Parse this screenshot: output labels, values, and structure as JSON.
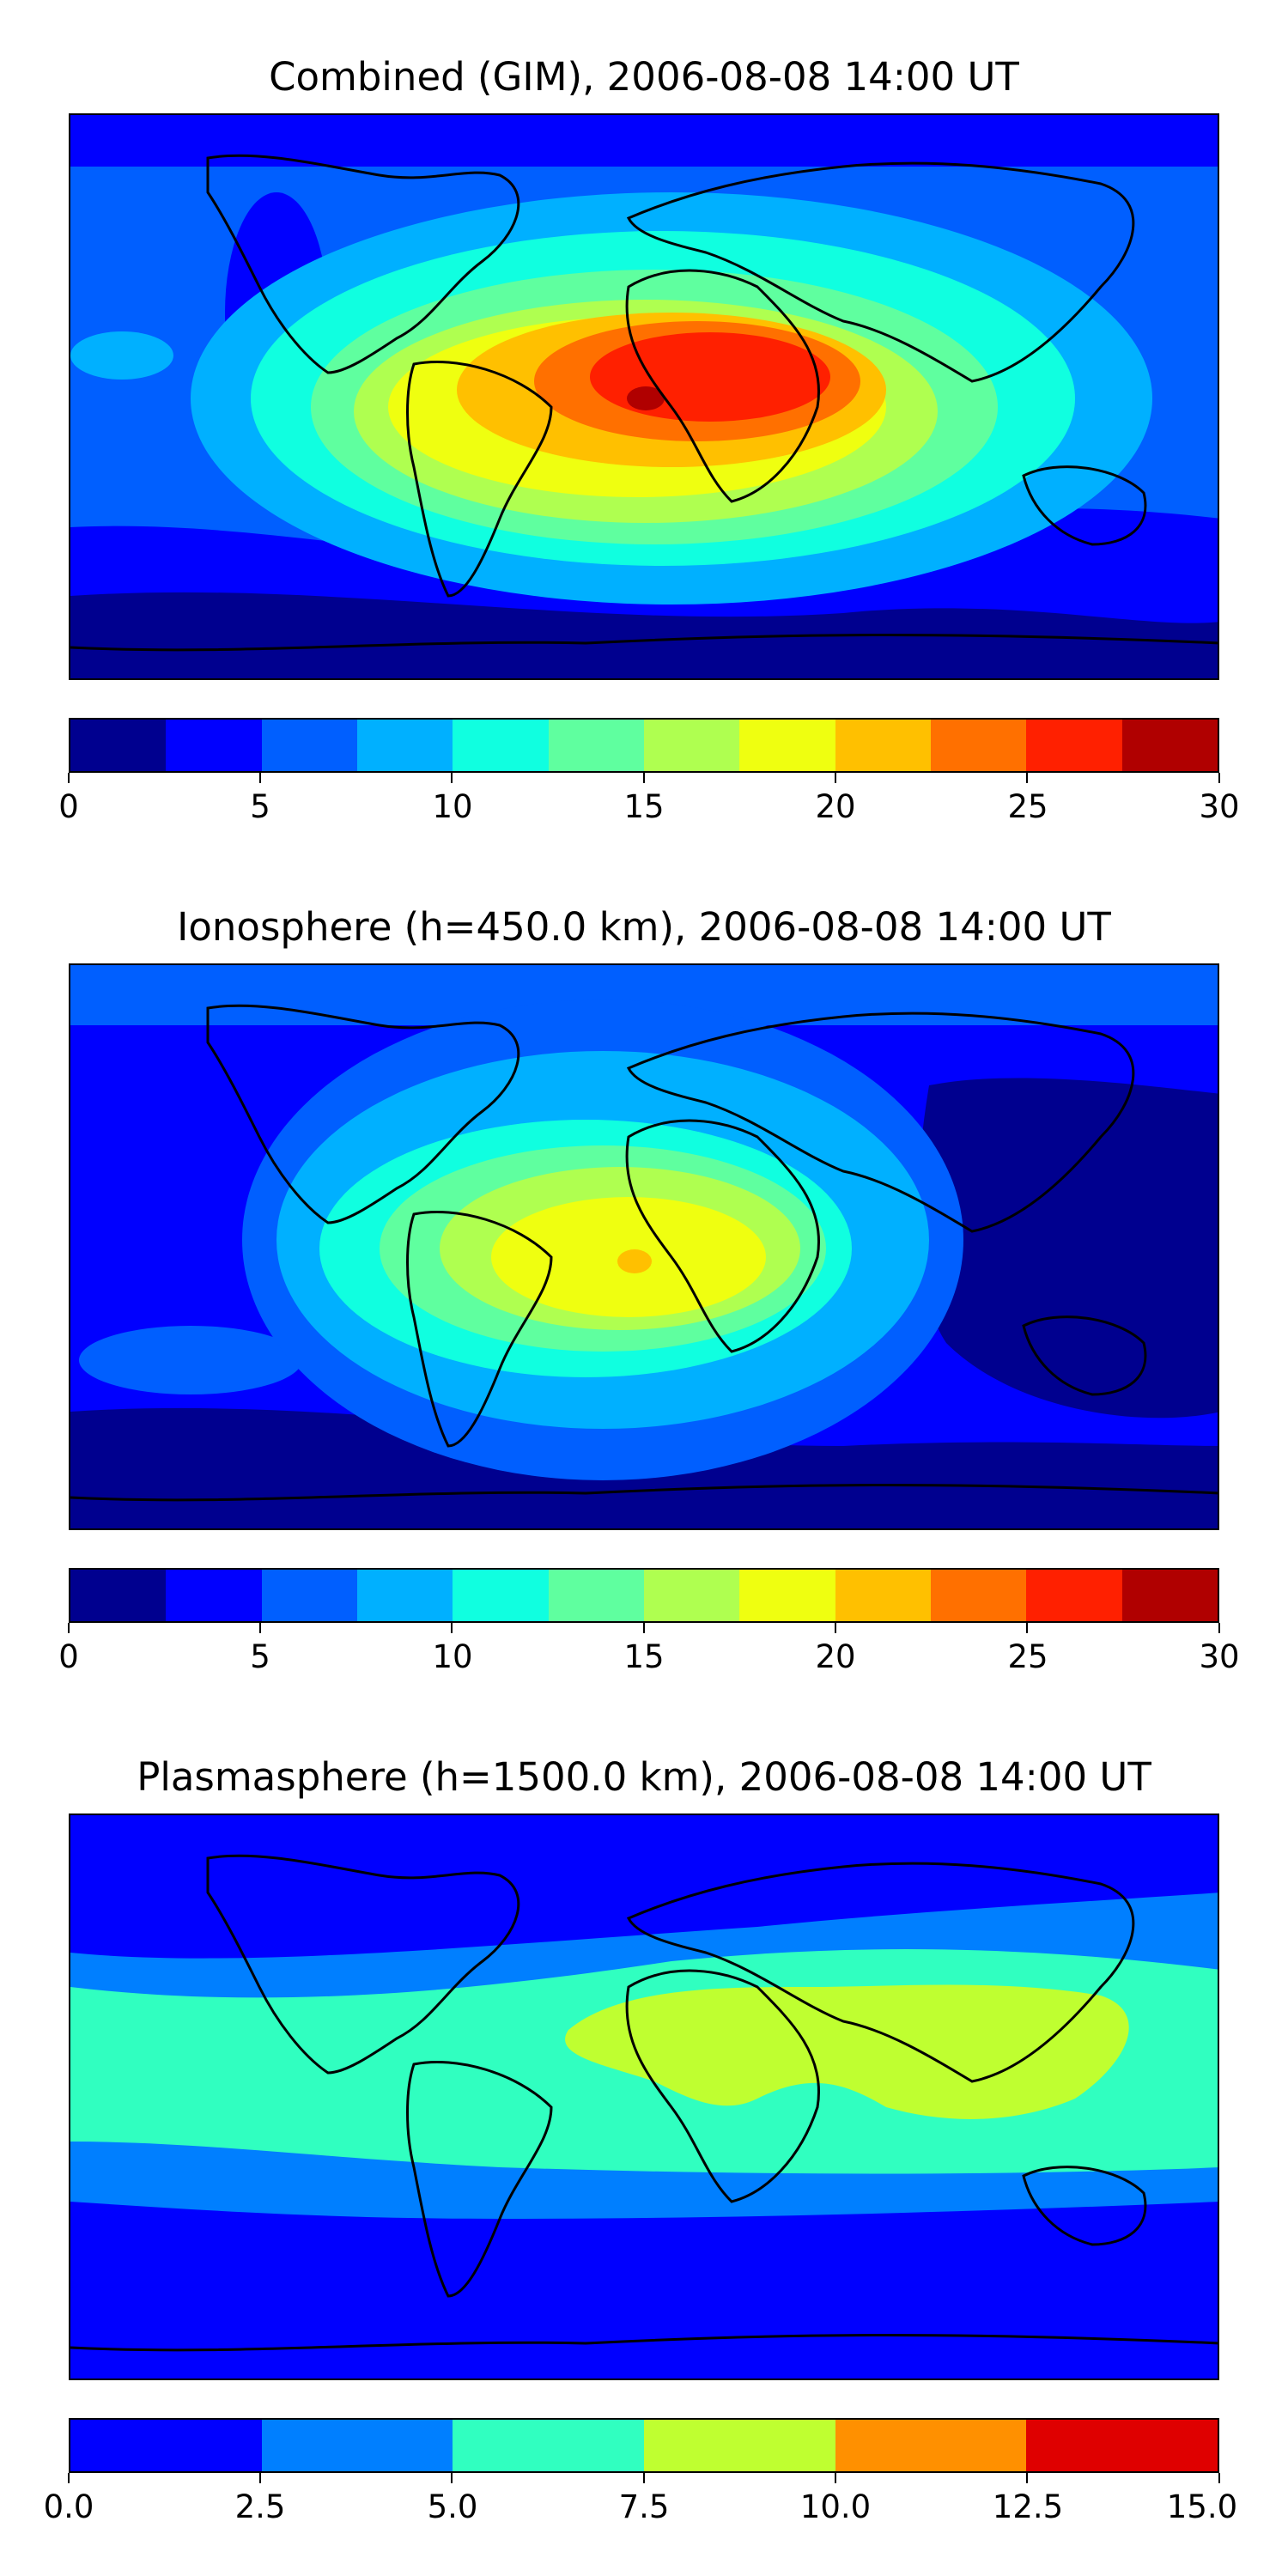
{
  "panels": [
    {
      "title": "Combined (GIM), 2006-08-08 14:00 UT",
      "colorbar": {
        "ticks": [
          "0",
          "5",
          "10",
          "15",
          "20",
          "25",
          "30"
        ],
        "colors": [
          "#00008f",
          "#0000ff",
          "#005fff",
          "#00b0ff",
          "#10ffe0",
          "#5fff9f",
          "#afff50",
          "#efff10",
          "#ffc000",
          "#ff7000",
          "#ff2000",
          "#b00000"
        ]
      }
    },
    {
      "title": "Ionosphere  (h=450.0 km), 2006-08-08 14:00 UT",
      "colorbar": {
        "ticks": [
          "0",
          "5",
          "10",
          "15",
          "20",
          "25",
          "30"
        ],
        "colors": [
          "#00008f",
          "#0000ff",
          "#005fff",
          "#00b0ff",
          "#10ffe0",
          "#5fff9f",
          "#afff50",
          "#efff10",
          "#ffc000",
          "#ff7000",
          "#ff2000",
          "#b00000"
        ]
      }
    },
    {
      "title": "Plasmasphere (h=1500.0 km), 2006-08-08 14:00 UT",
      "colorbar": {
        "ticks": [
          "0.0",
          "2.5",
          "5.0",
          "7.5",
          "10.0",
          "12.5",
          "15.0"
        ],
        "colors": [
          "#0000ff",
          "#007fff",
          "#30ffc0",
          "#bfff30",
          "#ff9000",
          "#df0000"
        ]
      }
    }
  ]
}
